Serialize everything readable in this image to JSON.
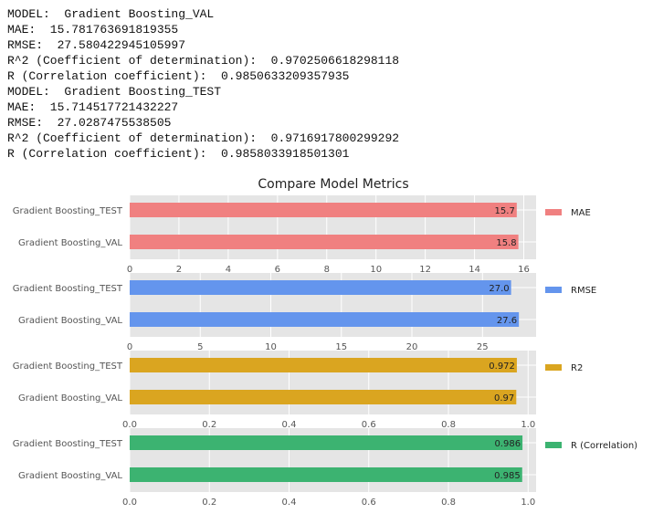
{
  "console": {
    "lines": [
      "MODEL:  Gradient Boosting_VAL",
      "MAE:  15.781763691819355",
      "RMSE:  27.580422945105997",
      "R^2 (Coefficient of determination):  0.9702506618298118",
      "R (Correlation coefficient):  0.9850633209357935",
      "MODEL:  Gradient Boosting_TEST",
      "MAE:  15.714517721432227",
      "RMSE:  27.0287475538505",
      "R^2 (Coefficient of determination):  0.9716917800299292",
      "R (Correlation coefficient):  0.9858033918501301"
    ]
  },
  "figure_title": "Compare Model Metrics",
  "chart_data": [
    {
      "type": "bar",
      "orientation": "horizontal",
      "categories": [
        "Gradient Boosting_TEST",
        "Gradient Boosting_VAL"
      ],
      "values": [
        15.714517721432227,
        15.781763691819355
      ],
      "bar_labels": [
        "15.7",
        "15.8"
      ],
      "legend": "MAE",
      "legend_position": "right",
      "color": "#F08080",
      "xlim": [
        0,
        16.5
      ],
      "xticks": [
        0,
        2,
        4,
        6,
        8,
        10,
        12,
        14,
        16
      ],
      "xtick_labels": [
        "0",
        "2",
        "4",
        "6",
        "8",
        "10",
        "12",
        "14",
        "16"
      ],
      "grid": true
    },
    {
      "type": "bar",
      "orientation": "horizontal",
      "categories": [
        "Gradient Boosting_TEST",
        "Gradient Boosting_VAL"
      ],
      "values": [
        27.0287475538505,
        27.580422945105997
      ],
      "bar_labels": [
        "27.0",
        "27.6"
      ],
      "legend": "RMSE",
      "legend_position": "right",
      "color": "#6495ED",
      "xlim": [
        0,
        28.8
      ],
      "xticks": [
        0,
        5,
        10,
        15,
        20,
        25
      ],
      "xtick_labels": [
        "0",
        "5",
        "10",
        "15",
        "20",
        "25"
      ],
      "grid": true
    },
    {
      "type": "bar",
      "orientation": "horizontal",
      "categories": [
        "Gradient Boosting_TEST",
        "Gradient Boosting_VAL"
      ],
      "values": [
        0.9716917800299292,
        0.9702506618298118
      ],
      "bar_labels": [
        "0.972",
        "0.97"
      ],
      "legend": "R2",
      "legend_position": "right",
      "color": "#DAA520",
      "xlim": [
        0,
        1.02
      ],
      "xticks": [
        0,
        0.2,
        0.4,
        0.6,
        0.8,
        1.0
      ],
      "xtick_labels": [
        "0.0",
        "0.2",
        "0.4",
        "0.6",
        "0.8",
        "1.0"
      ],
      "grid": true
    },
    {
      "type": "bar",
      "orientation": "horizontal",
      "categories": [
        "Gradient Boosting_TEST",
        "Gradient Boosting_VAL"
      ],
      "values": [
        0.9858033918501301,
        0.9850633209357935
      ],
      "bar_labels": [
        "0.986",
        "0.985"
      ],
      "legend": "R (Correlation)",
      "legend_position": "right",
      "color": "#3CB371",
      "xlim": [
        0,
        1.02
      ],
      "xticks": [
        0,
        0.2,
        0.4,
        0.6,
        0.8,
        1.0
      ],
      "xtick_labels": [
        "0.0",
        "0.2",
        "0.4",
        "0.6",
        "0.8",
        "1.0"
      ],
      "grid": true
    }
  ]
}
